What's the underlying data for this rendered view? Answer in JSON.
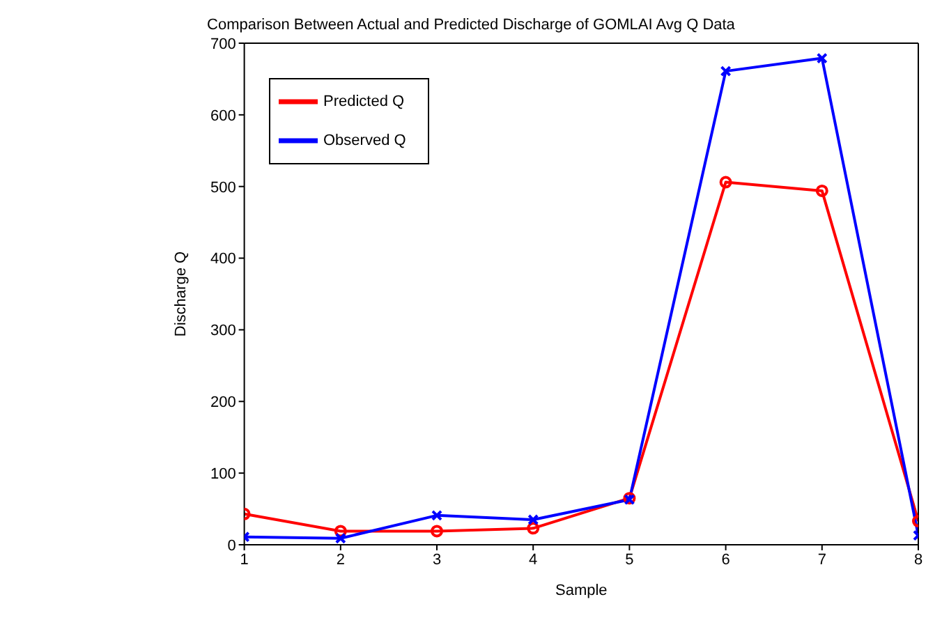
{
  "chart_data": {
    "type": "line",
    "title": "Comparison Between Actual and Predicted Discharge of GOMLAI Avg Q Data",
    "xlabel": "Sample",
    "ylabel": "Discharge Q",
    "x": [
      1,
      2,
      3,
      4,
      5,
      6,
      7,
      8
    ],
    "series": [
      {
        "name": "Predicted Q",
        "color": "#ff0000",
        "marker": "circle",
        "values": [
          43,
          19,
          19,
          23,
          65,
          506,
          494,
          33
        ]
      },
      {
        "name": "Observed Q",
        "color": "#0000ff",
        "marker": "cross",
        "values": [
          11,
          9,
          41,
          35,
          63,
          661,
          679,
          13
        ]
      }
    ],
    "xlim": [
      1,
      8
    ],
    "xticks": [
      1,
      2,
      3,
      4,
      5,
      6,
      7,
      8
    ],
    "ylim": [
      0,
      700
    ],
    "yticks": [
      0,
      100,
      200,
      300,
      400,
      500,
      600,
      700
    ],
    "grid": false,
    "legend": "top left",
    "line_style": "solid"
  }
}
